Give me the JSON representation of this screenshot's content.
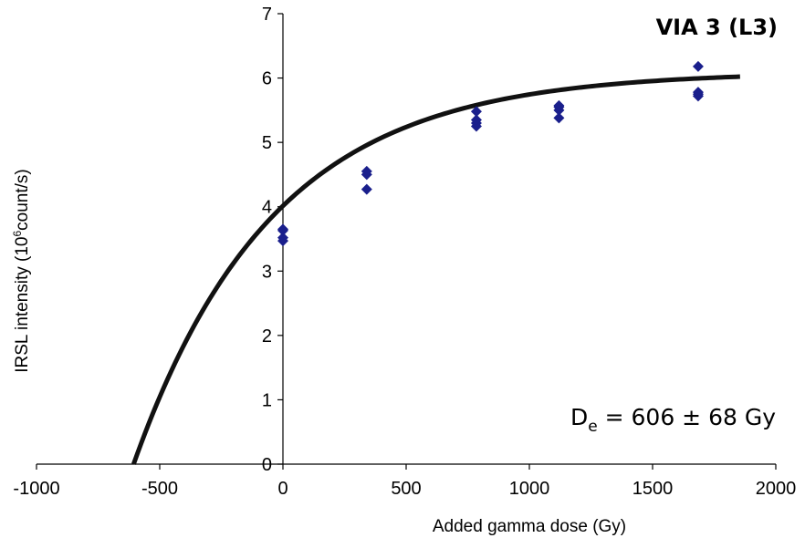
{
  "chart_data": {
    "type": "scatter",
    "title": "VIA 3 (L3)",
    "xlabel": "Added gamma dose (Gy)",
    "ylabel_main": "IRSL intensity (10",
    "ylabel_sup": "6",
    "ylabel_rest": "count/s)",
    "xlim": [
      -1000,
      2000
    ],
    "ylim": [
      0,
      7
    ],
    "xticks": [
      -1000,
      -500,
      0,
      500,
      1000,
      1500,
      2000
    ],
    "yticks": [
      0,
      1,
      2,
      3,
      4,
      5,
      6,
      7
    ],
    "grid": false,
    "legend": "none",
    "marker_color": "#1a1f8c",
    "fit_color": "#111111",
    "series": [
      {
        "marker": "diamond",
        "points": [
          [
            0,
            3.47
          ],
          [
            0,
            3.52
          ],
          [
            0,
            3.63
          ],
          [
            0,
            3.65
          ],
          [
            340,
            4.27
          ],
          [
            340,
            4.5
          ],
          [
            340,
            4.55
          ],
          [
            785,
            5.25
          ],
          [
            785,
            5.3
          ],
          [
            785,
            5.35
          ],
          [
            785,
            5.48
          ],
          [
            1120,
            5.38
          ],
          [
            1120,
            5.5
          ],
          [
            1120,
            5.55
          ],
          [
            1120,
            5.57
          ],
          [
            1685,
            5.72
          ],
          [
            1685,
            5.75
          ],
          [
            1685,
            5.78
          ],
          [
            1685,
            6.18
          ]
        ]
      }
    ],
    "fit": {
      "model": "saturating_exponential",
      "y_max": 6.1,
      "x_intercept": -606,
      "d0": 565,
      "x_range": [
        -606,
        1855
      ]
    },
    "annotation": {
      "text_main": "D",
      "text_sub": "e",
      "text_rest": " = 606 ± 68 Gy"
    }
  }
}
